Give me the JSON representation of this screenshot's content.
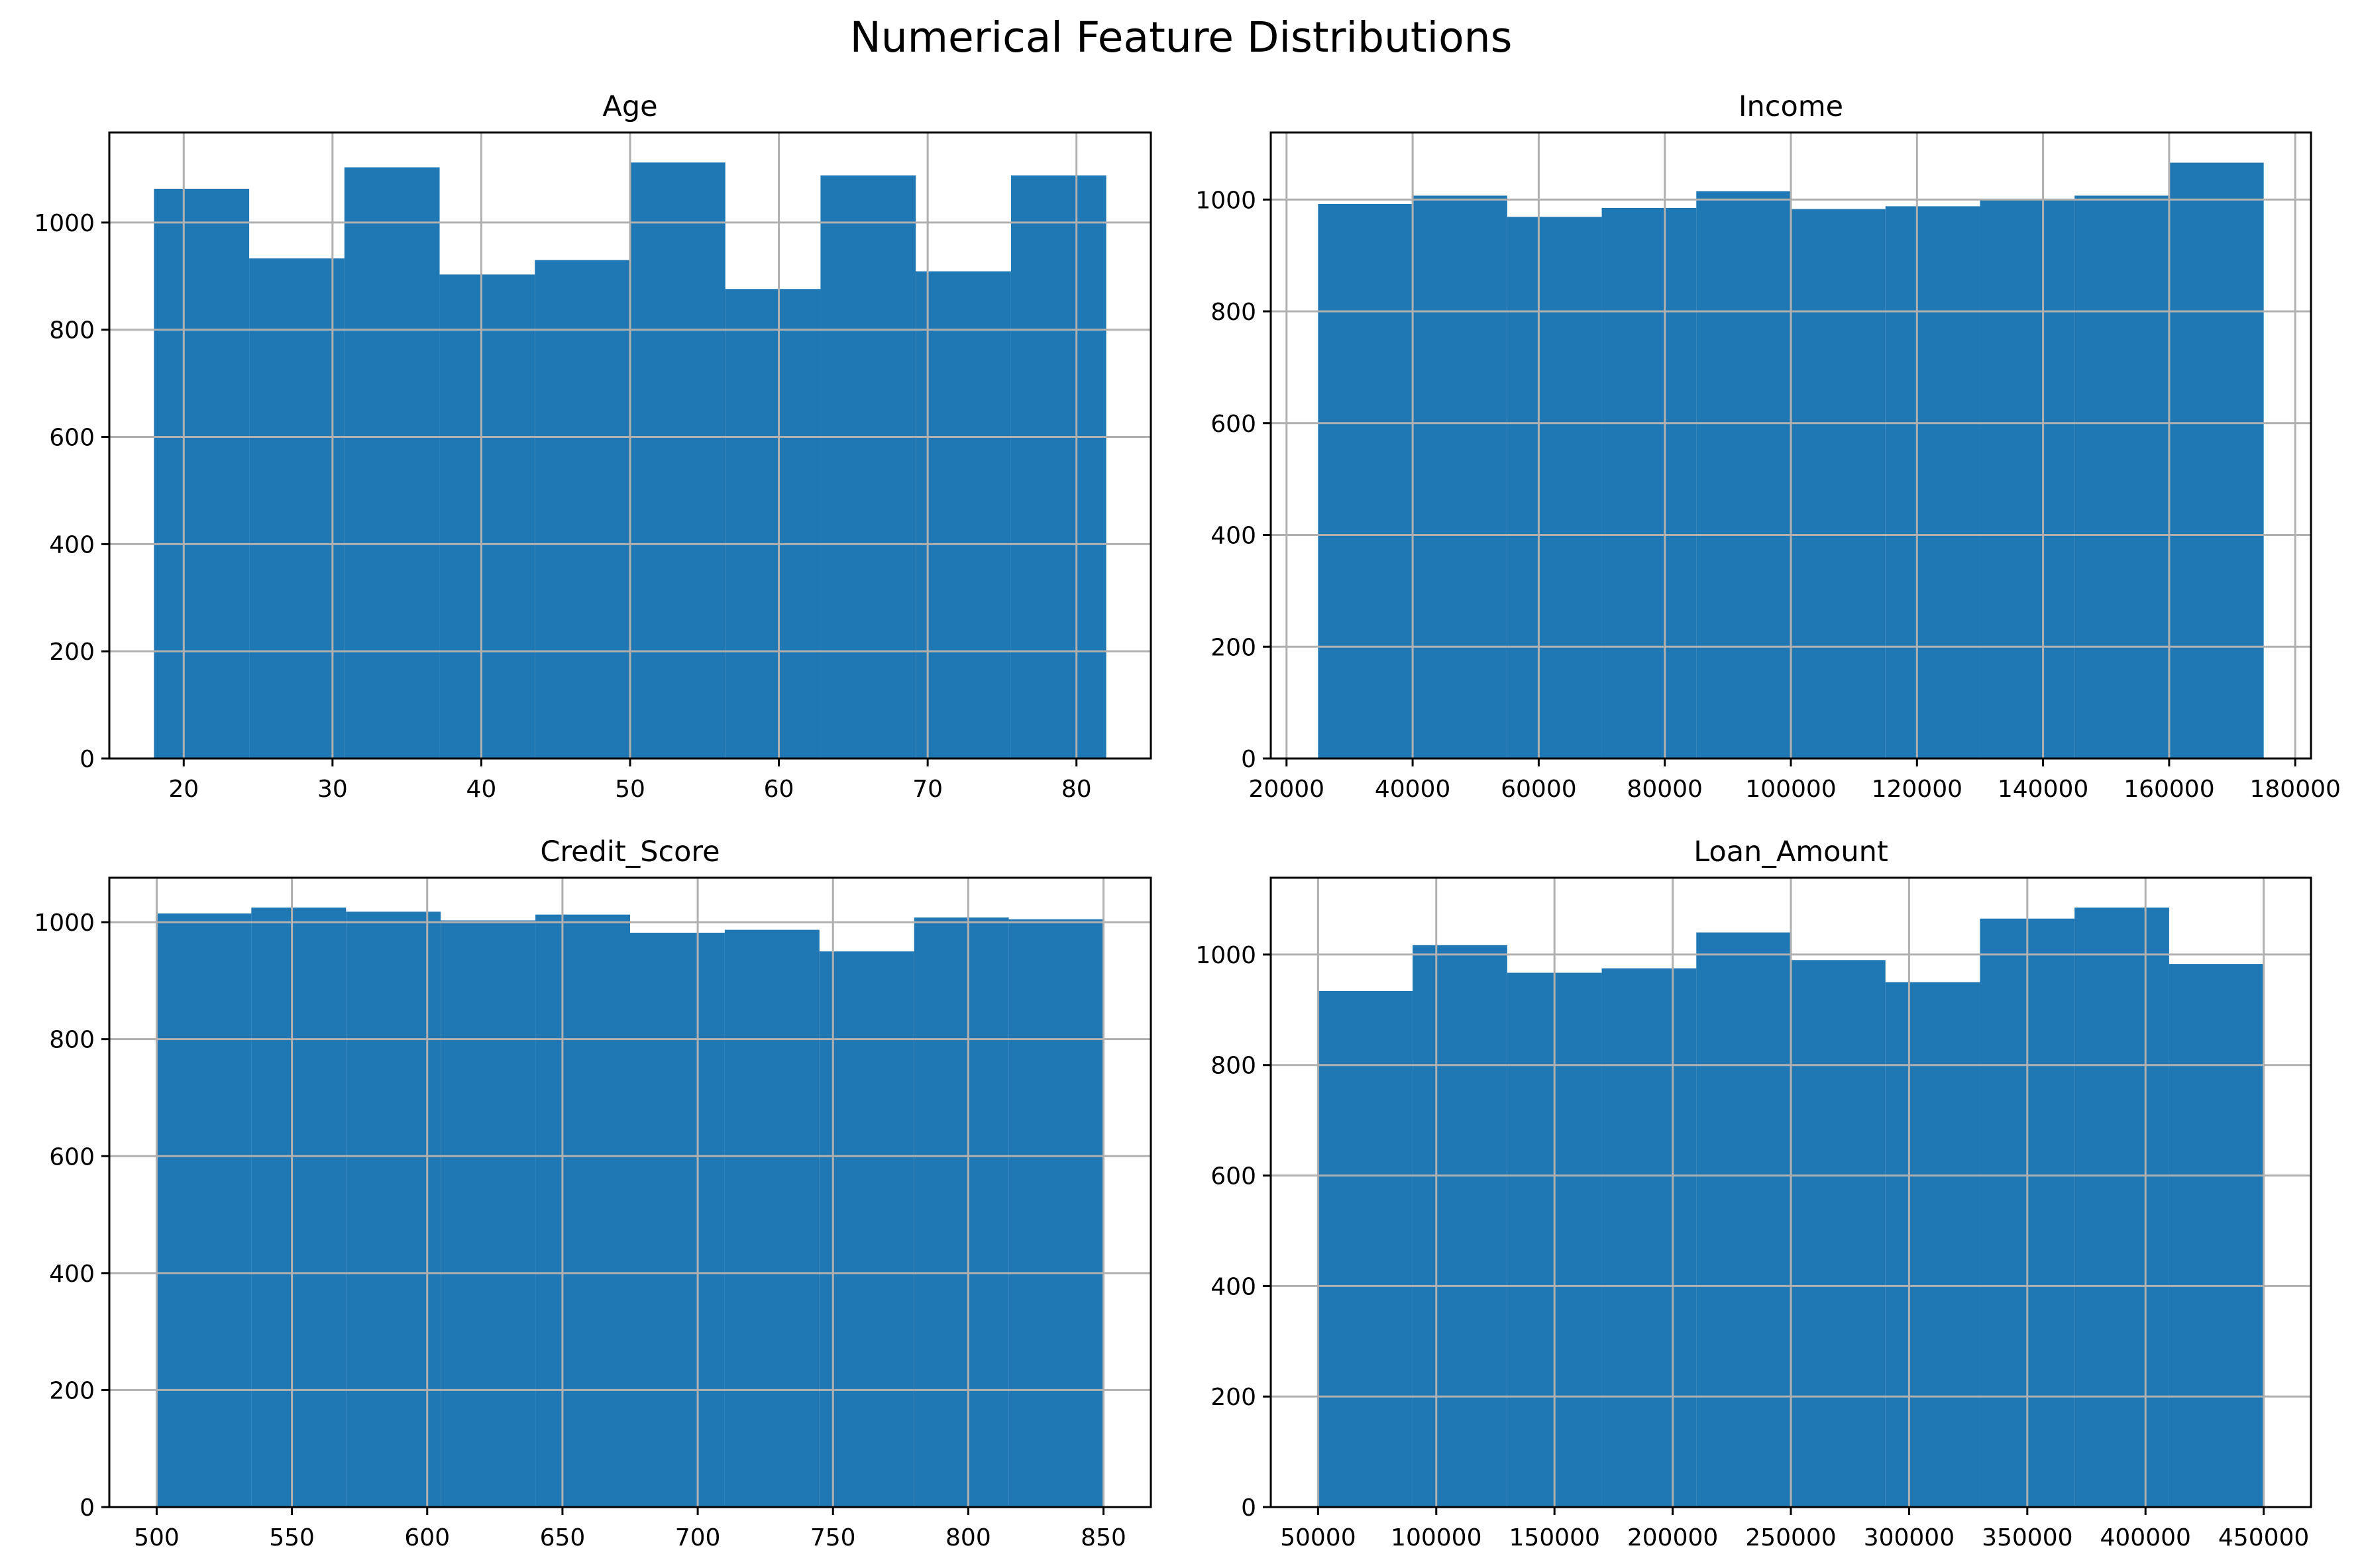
{
  "figure": {
    "title": "Numerical Feature Distributions"
  },
  "colors": {
    "bar": "#1f77b4",
    "grid": "#b0b0b0",
    "axis": "#000000"
  },
  "chart_data": [
    {
      "type": "bar",
      "subtype": "histogram",
      "title": "Age",
      "bin_edges": [
        18,
        24.4,
        30.8,
        37.2,
        43.6,
        50,
        56.4,
        62.8,
        69.2,
        75.6,
        82
      ],
      "values": [
        1063,
        933,
        1103,
        903,
        930,
        1112,
        876,
        1088,
        909,
        1088
      ],
      "xlim": [
        15,
        85
      ],
      "ylim": [
        0,
        1168
      ],
      "xticks": [
        20,
        30,
        40,
        50,
        60,
        70,
        80
      ],
      "yticks": [
        0,
        200,
        400,
        600,
        800,
        1000
      ],
      "grid": true
    },
    {
      "type": "bar",
      "subtype": "histogram",
      "title": "Income",
      "bin_edges": [
        25000,
        40000,
        55000,
        70000,
        85000,
        100000,
        115000,
        130000,
        145000,
        160000,
        175000
      ],
      "values": [
        992,
        1007,
        969,
        985,
        1015,
        983,
        988,
        1000,
        1007,
        1066
      ],
      "xlim": [
        17500,
        182500
      ],
      "ylim": [
        0,
        1120
      ],
      "xticks": [
        20000,
        40000,
        60000,
        80000,
        100000,
        120000,
        140000,
        160000,
        180000
      ],
      "yticks": [
        0,
        200,
        400,
        600,
        800,
        1000
      ],
      "grid": true
    },
    {
      "type": "bar",
      "subtype": "histogram",
      "title": "Credit_Score",
      "bin_edges": [
        500,
        535,
        570,
        605,
        640,
        675,
        710,
        745,
        780,
        815,
        850
      ],
      "values": [
        1015,
        1025,
        1018,
        1003,
        1013,
        982,
        987,
        950,
        1008,
        1005
      ],
      "xlim": [
        482.5,
        867.5
      ],
      "ylim": [
        0,
        1076
      ],
      "xticks": [
        500,
        550,
        600,
        650,
        700,
        750,
        800,
        850
      ],
      "yticks": [
        0,
        200,
        400,
        600,
        800,
        1000
      ],
      "grid": true
    },
    {
      "type": "bar",
      "subtype": "histogram",
      "title": "Loan_Amount",
      "bin_edges": [
        50000,
        90000,
        130000,
        170000,
        210000,
        250000,
        290000,
        330000,
        370000,
        410000,
        450000
      ],
      "values": [
        934,
        1017,
        967,
        975,
        1040,
        990,
        950,
        1065,
        1085,
        983
      ],
      "xlim": [
        30000,
        470000
      ],
      "ylim": [
        0,
        1139
      ],
      "xticks": [
        50000,
        100000,
        150000,
        200000,
        250000,
        300000,
        350000,
        400000,
        450000
      ],
      "yticks": [
        0,
        200,
        400,
        600,
        800,
        1000
      ],
      "grid": true
    }
  ]
}
